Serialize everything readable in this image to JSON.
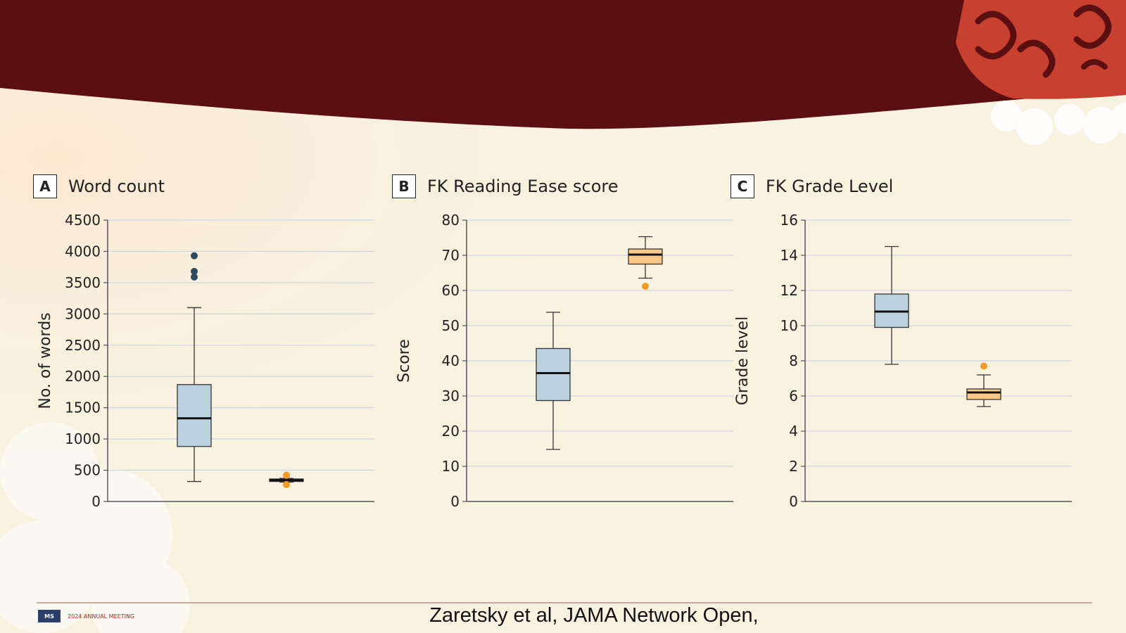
{
  "footer": {
    "citation": "Zaretsky et al, JAMA Network Open,",
    "logo_badge": "MS",
    "logo_text": "2024 ANNUAL MEETING"
  },
  "colors": {
    "header": "#5a0f10",
    "accent": "#c8402f",
    "box_blue": "#bcd3df",
    "box_orange": "#fbc987",
    "outlier_blue": "#2f4b5c",
    "outlier_orange": "#f39a27"
  },
  "chart_data": [
    {
      "type": "box",
      "letter": "A",
      "title": "Word count",
      "ylabel": "No. of words",
      "ylim": [
        0,
        4500
      ],
      "ticks": [
        0,
        500,
        1000,
        1500,
        2000,
        2500,
        3000,
        3500,
        4000,
        4500
      ],
      "grid": true,
      "series": [
        {
          "min": 320,
          "q1": 880,
          "median": 1330,
          "q3": 1870,
          "max": 3100,
          "outliers": [
            3590,
            3680,
            3930
          ],
          "color": "blue"
        },
        {
          "min": 310,
          "q1": 320,
          "median": 340,
          "q3": 360,
          "max": 370,
          "outliers": [
            270,
            420
          ],
          "color": "orange"
        }
      ]
    },
    {
      "type": "box",
      "letter": "B",
      "title": "FK Reading Ease score",
      "ylabel": "Score",
      "ylim": [
        0,
        80
      ],
      "ticks": [
        0,
        10,
        20,
        30,
        40,
        50,
        60,
        70,
        80
      ],
      "grid": true,
      "series": [
        {
          "min": 14.8,
          "q1": 28.7,
          "median": 36.5,
          "q3": 43.5,
          "max": 53.8,
          "outliers": [],
          "color": "blue"
        },
        {
          "min": 63.5,
          "q1": 67.5,
          "median": 70.2,
          "q3": 71.8,
          "max": 75.3,
          "outliers": [
            61.2
          ],
          "color": "orange"
        }
      ]
    },
    {
      "type": "box",
      "letter": "C",
      "title": "FK Grade Level",
      "ylabel": "Grade level",
      "ylim": [
        0,
        16
      ],
      "ticks": [
        0,
        2,
        4,
        6,
        8,
        10,
        12,
        14,
        16
      ],
      "grid": true,
      "series": [
        {
          "min": 7.8,
          "q1": 9.9,
          "median": 10.8,
          "q3": 11.8,
          "max": 14.5,
          "outliers": [],
          "color": "blue"
        },
        {
          "min": 5.4,
          "q1": 5.8,
          "median": 6.2,
          "q3": 6.4,
          "max": 7.2,
          "outliers": [
            7.7
          ],
          "color": "orange"
        }
      ]
    }
  ]
}
